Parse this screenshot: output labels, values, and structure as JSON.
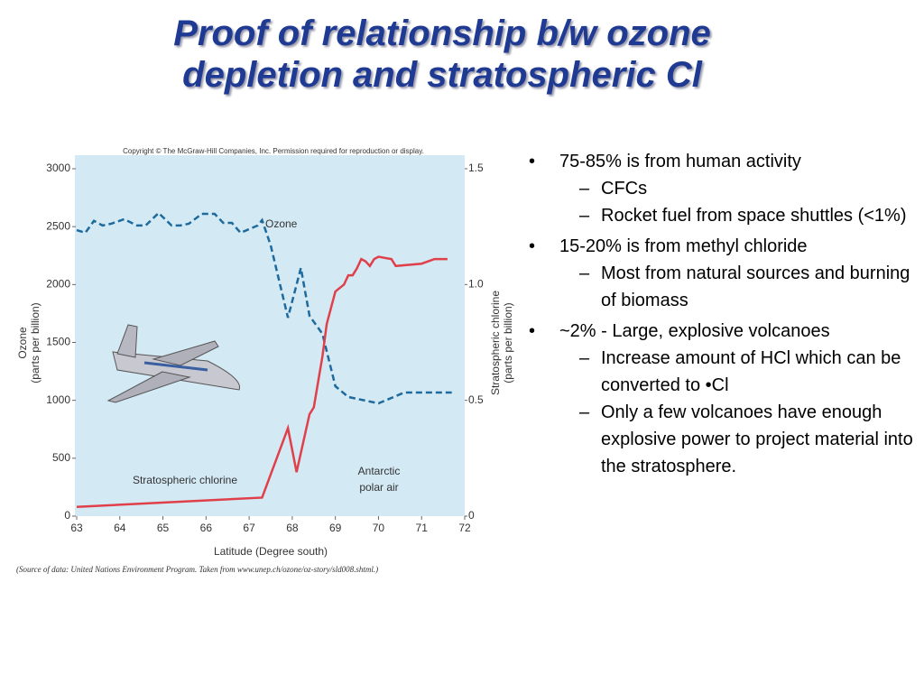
{
  "slide_title": [
    "Proof of relationship b/w ozone",
    "depletion and stratospheric Cl"
  ],
  "bullets": [
    {
      "text": "75-85% is from human activity",
      "subs": [
        "CFCs",
        "Rocket fuel from space shuttles (<1%)"
      ]
    },
    {
      "text": "15-20% is from methyl chloride",
      "subs": [
        "Most from natural sources and burning of biomass"
      ]
    },
    {
      "text": "~2% - Large, explosive volcanoes",
      "subs": [
        "Increase amount of HCl which can be converted to •Cl",
        "Only a few volcanoes have enough explosive power to project material into the stratosphere."
      ]
    }
  ],
  "chart_data": {
    "type": "line",
    "copyright": "Copyright © The McGraw-Hill Companies, Inc. Permission required for reproduction or display.",
    "source": "(Source of data: United Nations Environment Program. Taken from www.unep.ch/ozone/oz-story/sld008.shtml.)",
    "xlabel": "Latitude (Degree south)",
    "ylabel": [
      "Ozone",
      "(parts per billion)"
    ],
    "y2label": [
      "Stratospheric chlorine",
      "(parts per billion)"
    ],
    "annotations": [
      "Ozone",
      "Stratospheric chlorine",
      "Antarctic",
      "polar air"
    ],
    "xlim": [
      63,
      72
    ],
    "xticks": [
      63,
      64,
      65,
      66,
      67,
      68,
      69,
      70,
      71,
      72
    ],
    "ylim": [
      0,
      3000
    ],
    "yticks": [
      0,
      500,
      1000,
      1500,
      2000,
      2500,
      3000
    ],
    "y2lim": [
      0,
      1.5
    ],
    "y2ticks": [
      0,
      0.5,
      {
        "value": 1,
        "label": "1.0"
      },
      1.5
    ],
    "series": [
      {
        "name": "Ozone",
        "color": "#1f6a9c",
        "dashed": true,
        "x": [
          63.0,
          63.2,
          63.4,
          63.6,
          63.8,
          64.1,
          64.4,
          64.6,
          64.9,
          65.2,
          65.4,
          65.6,
          65.9,
          66.2,
          66.4,
          66.6,
          66.8,
          67.2,
          67.3,
          67.5,
          67.9,
          68.2,
          68.4,
          68.7,
          69.0,
          69.3,
          70.0,
          70.6,
          71.7
        ],
        "values": [
          2470,
          2447,
          2550,
          2510,
          2525,
          2564,
          2510,
          2510,
          2618,
          2510,
          2510,
          2525,
          2610,
          2610,
          2532,
          2532,
          2447,
          2510,
          2556,
          2338,
          1714,
          2143,
          1730,
          1574,
          1122,
          1029,
          974,
          1068,
          1068
        ]
      },
      {
        "name": "Stratospheric chlorine",
        "color": "#e0404a",
        "axis": "y2",
        "x": [
          63.0,
          67.3,
          67.9,
          68.1,
          68.4,
          68.5,
          68.6,
          68.7,
          68.8,
          69.0,
          69.2,
          69.3,
          69.4,
          69.5,
          69.6,
          69.7,
          69.8,
          69.9,
          70.0,
          70.3,
          70.4,
          71.0,
          71.3,
          71.6
        ],
        "values": [
          0.04,
          0.08,
          0.38,
          0.19,
          0.44,
          0.47,
          0.58,
          0.69,
          0.83,
          0.97,
          1.0,
          1.04,
          1.04,
          1.07,
          1.11,
          1.1,
          1.08,
          1.11,
          1.12,
          1.11,
          1.08,
          1.09,
          1.11,
          1.11
        ]
      }
    ]
  }
}
